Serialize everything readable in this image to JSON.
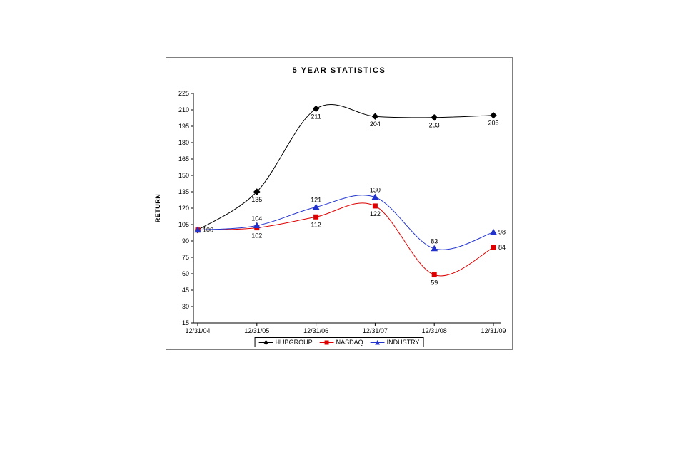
{
  "chart_data": {
    "type": "line",
    "title": "5 YEAR STATISTICS",
    "xlabel": "",
    "ylabel": "RETURN",
    "categories": [
      "12/31/04",
      "12/31/05",
      "12/31/06",
      "12/31/07",
      "12/31/08",
      "12/31/09"
    ],
    "y_axis": {
      "min": 15,
      "max": 225,
      "step": 15,
      "tick_labels": [
        "225",
        "210",
        "195",
        "180",
        "165",
        "150",
        "135",
        "120",
        "105",
        "90",
        "75",
        "60",
        "45",
        "30",
        "15"
      ]
    },
    "grid": false,
    "smooth": true,
    "legend_position": "bottom",
    "series": [
      {
        "name": "HUBGROUP",
        "color": "#000000",
        "marker": "diamond",
        "values": [
          100,
          135,
          211,
          204,
          203,
          205
        ],
        "labels": [
          "100",
          "135",
          "211",
          "204",
          "203",
          "205"
        ],
        "label_positions": [
          "right",
          "below",
          "below",
          "below",
          "below",
          "below"
        ]
      },
      {
        "name": "NASDAQ",
        "color": "#dd0000",
        "marker": "square",
        "values": [
          100,
          102,
          112,
          122,
          59,
          84
        ],
        "labels": [
          null,
          "102",
          "112",
          "122",
          "59",
          "84"
        ],
        "label_positions": [
          null,
          "below",
          "below",
          "below",
          "below",
          "right"
        ]
      },
      {
        "name": "INDUSTRY",
        "color": "#2233cc",
        "marker": "triangle",
        "values": [
          100,
          104,
          121,
          130,
          83,
          98
        ],
        "labels": [
          null,
          "104",
          "121",
          "130",
          "83",
          "98"
        ],
        "label_positions": [
          null,
          "above",
          "above",
          "above",
          "above",
          "right"
        ]
      }
    ]
  }
}
